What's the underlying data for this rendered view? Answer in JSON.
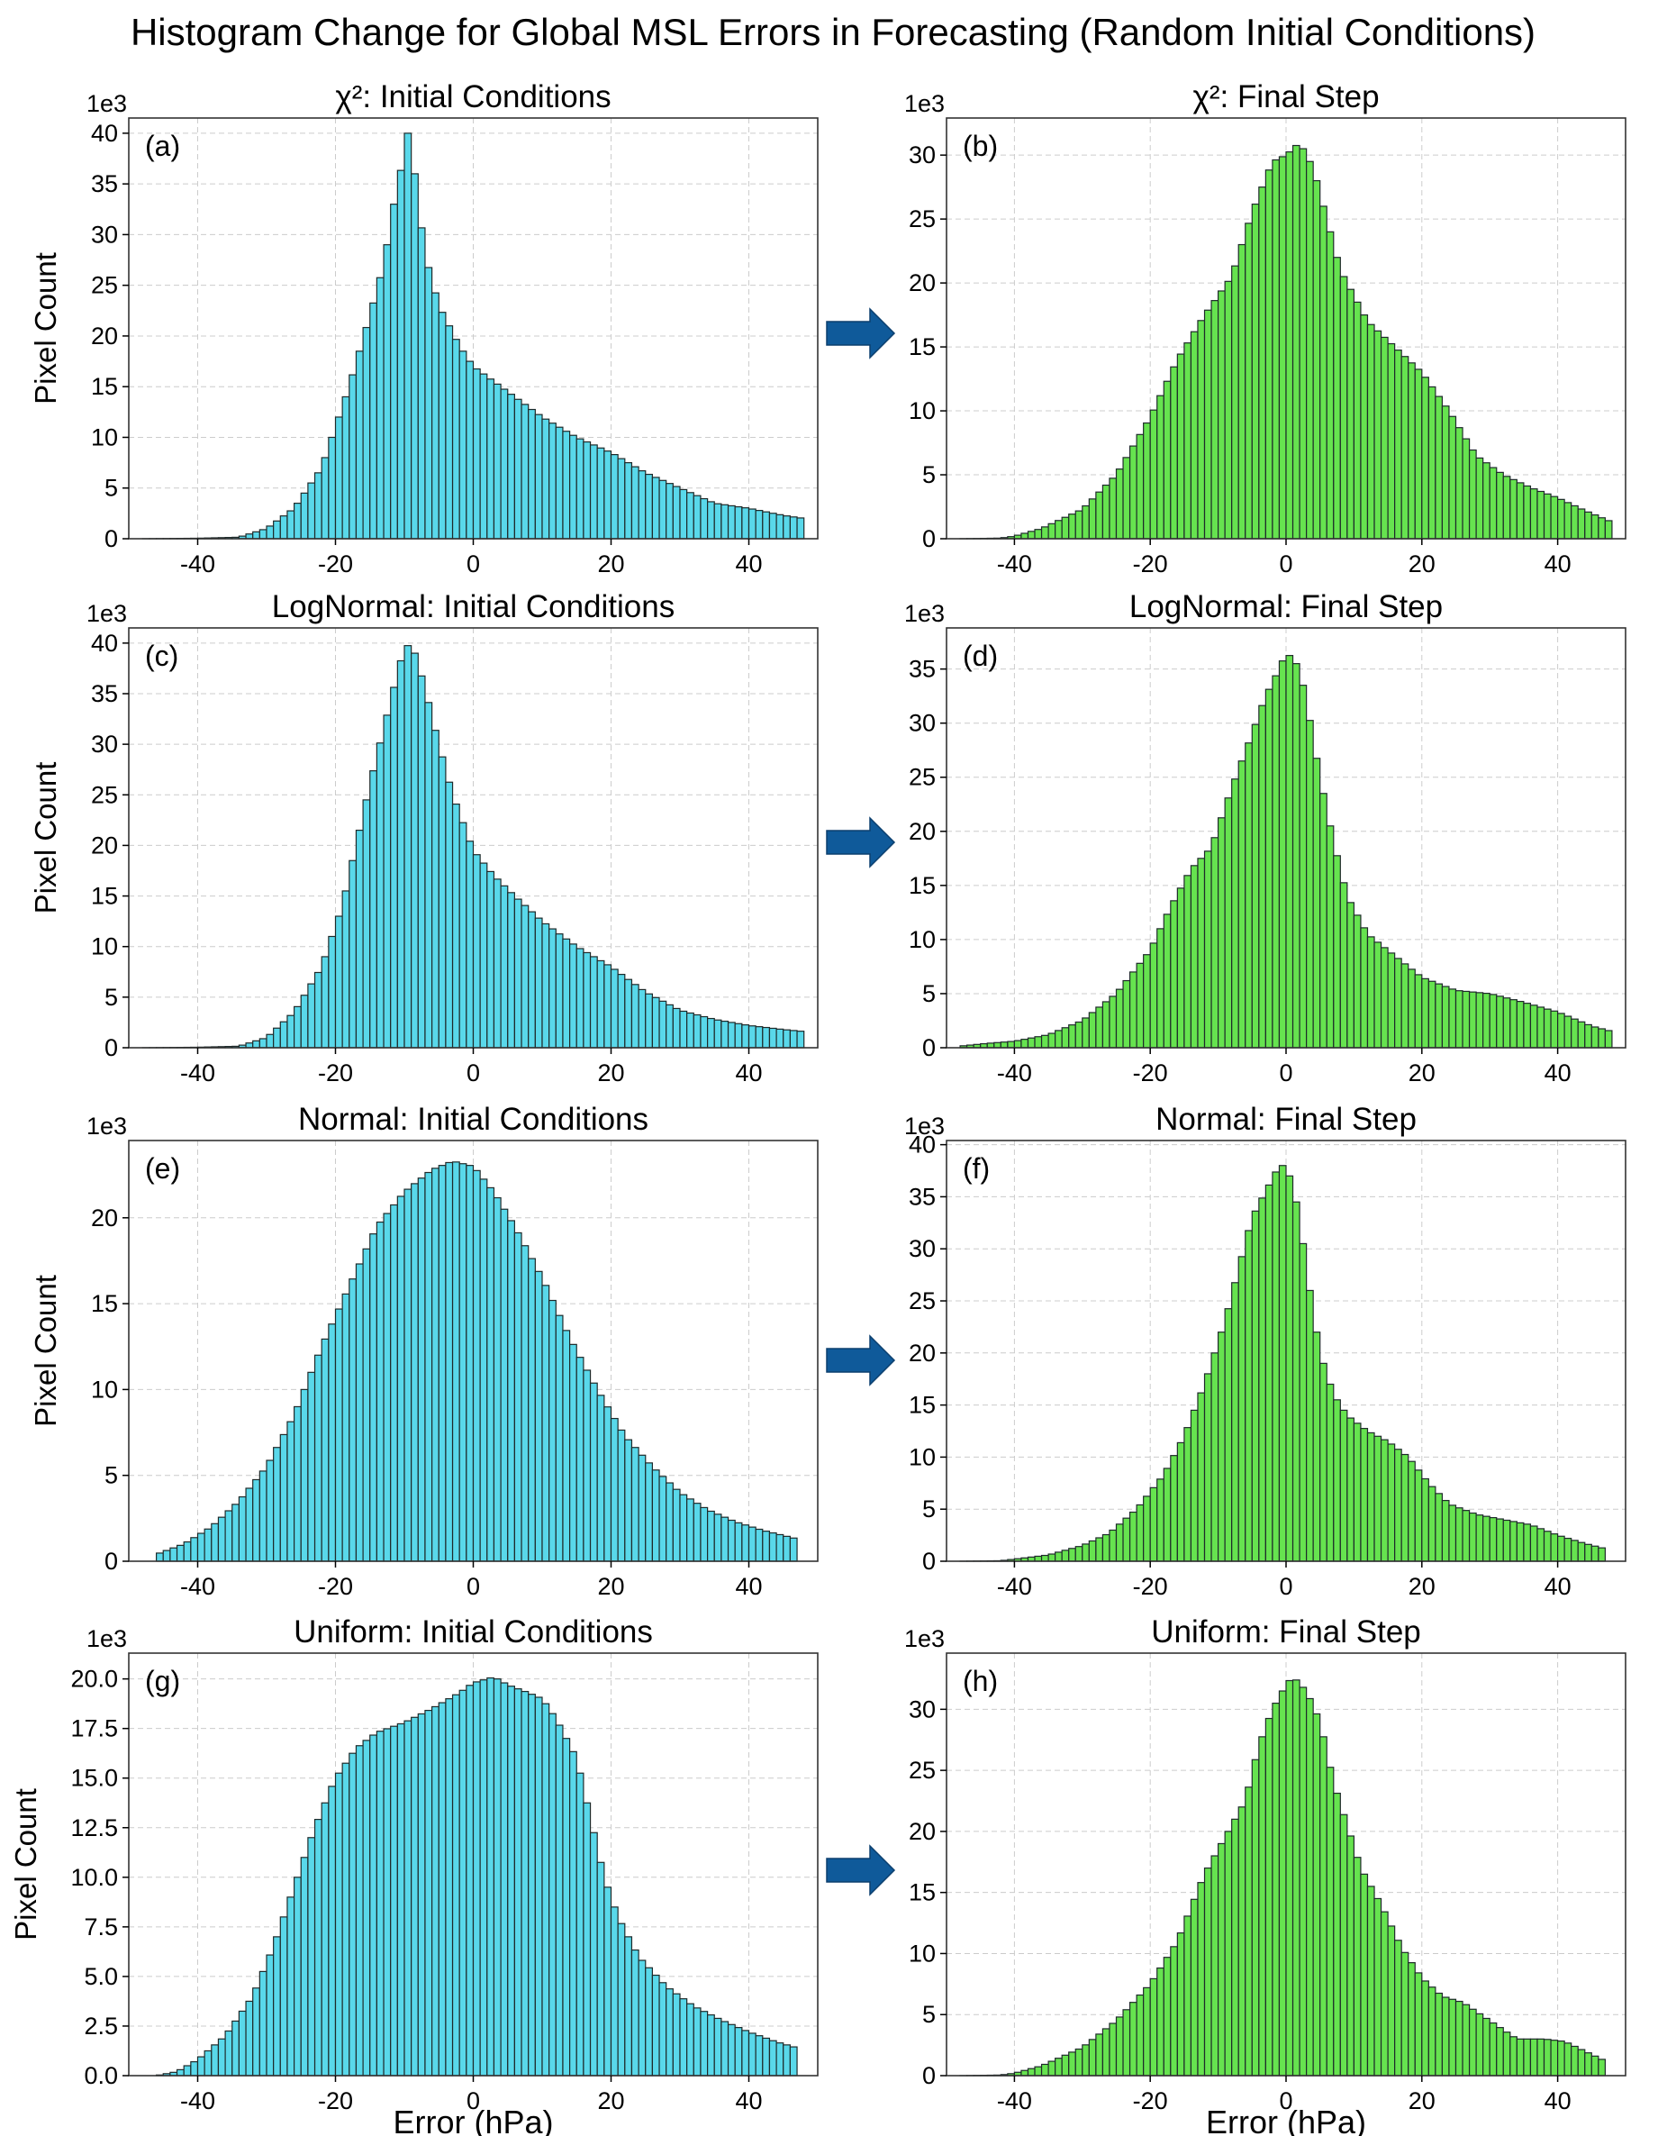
{
  "title": "Histogram Change for Global MSL Errors in Forecasting (Random Initial Conditions)",
  "colors": {
    "initial_fill": "#59d8ea",
    "final_fill": "#66e34f",
    "bar_edge": "#1e2a2a",
    "arrow": "#0f5a9a",
    "grid": "#cccccc"
  },
  "chart_data": [
    {
      "panel": "(a)",
      "type": "bar",
      "title": "χ²: Initial Conditions",
      "xlabel": "",
      "ylabel": "Pixel Count",
      "y_scale_label": "1e3",
      "xlim": [
        -50,
        50
      ],
      "ylim": [
        0,
        41.5
      ],
      "xticks": [
        -40,
        -20,
        0,
        20,
        40
      ],
      "yticks": [
        0,
        5,
        10,
        15,
        20,
        25,
        30,
        35,
        40
      ],
      "x_start": -48,
      "x_end": 48,
      "anchors": [
        [
          -48,
          0
        ],
        [
          -40,
          0.05
        ],
        [
          -34,
          0.15
        ],
        [
          -30,
          1
        ],
        [
          -26,
          3
        ],
        [
          -22,
          7
        ],
        [
          -18,
          15
        ],
        [
          -15,
          22
        ],
        [
          -13,
          27
        ],
        [
          -11.5,
          33
        ],
        [
          -10,
          38
        ],
        [
          -9.5,
          40
        ],
        [
          -8.5,
          36
        ],
        [
          -7,
          28
        ],
        [
          -5,
          23
        ],
        [
          -2,
          19
        ],
        [
          0,
          17
        ],
        [
          5,
          14.5
        ],
        [
          10,
          12
        ],
        [
          15,
          10
        ],
        [
          20,
          8.5
        ],
        [
          25,
          6.5
        ],
        [
          30,
          5
        ],
        [
          35,
          3.5
        ],
        [
          40,
          3
        ],
        [
          45,
          2.3
        ],
        [
          48,
          2
        ]
      ]
    },
    {
      "panel": "(b)",
      "type": "bar",
      "title": "χ²: Final Step",
      "xlabel": "",
      "ylabel": "",
      "y_scale_label": "1e3",
      "xlim": [
        -50,
        50
      ],
      "ylim": [
        0,
        32.9
      ],
      "xticks": [
        -40,
        -20,
        0,
        20,
        40
      ],
      "yticks": [
        0,
        5,
        10,
        15,
        20,
        25,
        30
      ],
      "x_start": -48,
      "x_end": 48,
      "anchors": [
        [
          -48,
          0
        ],
        [
          -42,
          0.05
        ],
        [
          -40,
          0.2
        ],
        [
          -36,
          0.8
        ],
        [
          -30,
          2.3
        ],
        [
          -25,
          5
        ],
        [
          -20,
          9.5
        ],
        [
          -16,
          14
        ],
        [
          -12,
          17.5
        ],
        [
          -8,
          20.5
        ],
        [
          -5,
          25.5
        ],
        [
          -2,
          29.5
        ],
        [
          0,
          30
        ],
        [
          2,
          31
        ],
        [
          4,
          29
        ],
        [
          6,
          25
        ],
        [
          8,
          21
        ],
        [
          10,
          19
        ],
        [
          12,
          17
        ],
        [
          15,
          15.5
        ],
        [
          18,
          14
        ],
        [
          20,
          13
        ],
        [
          24,
          10
        ],
        [
          28,
          6.5
        ],
        [
          32,
          5
        ],
        [
          36,
          4
        ],
        [
          40,
          3.2
        ],
        [
          44,
          2.2
        ],
        [
          48,
          1.3
        ]
      ]
    },
    {
      "panel": "(c)",
      "type": "bar",
      "title": "LogNormal: Initial Conditions",
      "xlabel": "",
      "ylabel": "Pixel Count",
      "y_scale_label": "1e3",
      "xlim": [
        -50,
        50
      ],
      "ylim": [
        0,
        41.5
      ],
      "xticks": [
        -40,
        -20,
        0,
        20,
        40
      ],
      "yticks": [
        0,
        5,
        10,
        15,
        20,
        25,
        30,
        35,
        40
      ],
      "x_start": -48,
      "x_end": 48,
      "anchors": [
        [
          -48,
          0
        ],
        [
          -40,
          0.05
        ],
        [
          -34,
          0.15
        ],
        [
          -30,
          1
        ],
        [
          -26,
          3.5
        ],
        [
          -22,
          8
        ],
        [
          -19,
          14
        ],
        [
          -17,
          20
        ],
        [
          -15,
          26
        ],
        [
          -13,
          31.5
        ],
        [
          -11,
          37
        ],
        [
          -10,
          39.5
        ],
        [
          -9,
          40
        ],
        [
          -8,
          38
        ],
        [
          -7,
          35.5
        ],
        [
          -5,
          30
        ],
        [
          -3,
          25
        ],
        [
          0,
          19.5
        ],
        [
          3,
          17
        ],
        [
          6,
          15
        ],
        [
          10,
          12.5
        ],
        [
          15,
          10
        ],
        [
          20,
          8
        ],
        [
          25,
          5.5
        ],
        [
          30,
          3.7
        ],
        [
          35,
          2.8
        ],
        [
          40,
          2.2
        ],
        [
          45,
          1.8
        ],
        [
          48,
          1.6
        ]
      ]
    },
    {
      "panel": "(d)",
      "type": "bar",
      "title": "LogNormal: Final Step",
      "xlabel": "",
      "ylabel": "",
      "y_scale_label": "1e3",
      "xlim": [
        -50,
        50
      ],
      "ylim": [
        0,
        38.8
      ],
      "xticks": [
        -40,
        -20,
        0,
        20,
        40
      ],
      "yticks": [
        0,
        5,
        10,
        15,
        20,
        25,
        30,
        35
      ],
      "x_start": -48,
      "x_end": 48,
      "anchors": [
        [
          -48,
          0.15
        ],
        [
          -44,
          0.4
        ],
        [
          -40,
          0.6
        ],
        [
          -35,
          1.2
        ],
        [
          -30,
          2.5
        ],
        [
          -25,
          5
        ],
        [
          -20,
          9
        ],
        [
          -17,
          13
        ],
        [
          -14,
          16.5
        ],
        [
          -11,
          18.5
        ],
        [
          -8,
          24
        ],
        [
          -5,
          29
        ],
        [
          -3,
          32.5
        ],
        [
          -1,
          35
        ],
        [
          0,
          36.5
        ],
        [
          1,
          36
        ],
        [
          2,
          35
        ],
        [
          3,
          32
        ],
        [
          5,
          25
        ],
        [
          7,
          19
        ],
        [
          9,
          14
        ],
        [
          12,
          10.5
        ],
        [
          15,
          9
        ],
        [
          20,
          6.5
        ],
        [
          25,
          5.3
        ],
        [
          30,
          5
        ],
        [
          35,
          4.2
        ],
        [
          40,
          3.3
        ],
        [
          45,
          2
        ],
        [
          48,
          1.5
        ]
      ]
    },
    {
      "panel": "(e)",
      "type": "bar",
      "title": "Normal: Initial Conditions",
      "xlabel": "",
      "ylabel": "Pixel Count",
      "y_scale_label": "1e3",
      "xlim": [
        -50,
        50
      ],
      "ylim": [
        0,
        24.5
      ],
      "xticks": [
        -40,
        -20,
        0,
        20,
        40
      ],
      "yticks": [
        0,
        5,
        10,
        15,
        20
      ],
      "x_start": -46,
      "x_end": 47,
      "anchors": [
        [
          -46,
          0.4
        ],
        [
          -42,
          1
        ],
        [
          -38,
          2
        ],
        [
          -34,
          3.5
        ],
        [
          -30,
          5.5
        ],
        [
          -26,
          8.5
        ],
        [
          -22,
          12.5
        ],
        [
          -18,
          16
        ],
        [
          -14,
          19.5
        ],
        [
          -10,
          21.5
        ],
        [
          -6,
          22.8
        ],
        [
          -3,
          23.3
        ],
        [
          0,
          23
        ],
        [
          3,
          21.5
        ],
        [
          6,
          19.5
        ],
        [
          10,
          16.5
        ],
        [
          14,
          13
        ],
        [
          18,
          10
        ],
        [
          22,
          7.3
        ],
        [
          26,
          5.5
        ],
        [
          30,
          4
        ],
        [
          34,
          3
        ],
        [
          38,
          2.3
        ],
        [
          42,
          1.8
        ],
        [
          47,
          1.3
        ]
      ]
    },
    {
      "panel": "(f)",
      "type": "bar",
      "title": "Normal: Final Step",
      "xlabel": "",
      "ylabel": "",
      "y_scale_label": "1e3",
      "xlim": [
        -50,
        50
      ],
      "ylim": [
        0,
        40.4
      ],
      "xticks": [
        -40,
        -20,
        0,
        20,
        40
      ],
      "yticks": [
        0,
        5,
        10,
        15,
        20,
        25,
        30,
        35,
        40
      ],
      "x_start": -48,
      "x_end": 47,
      "anchors": [
        [
          -48,
          0
        ],
        [
          -42,
          0.05
        ],
        [
          -40,
          0.2
        ],
        [
          -35,
          0.6
        ],
        [
          -30,
          1.5
        ],
        [
          -26,
          2.7
        ],
        [
          -22,
          5
        ],
        [
          -18,
          8.3
        ],
        [
          -15,
          12
        ],
        [
          -12,
          17
        ],
        [
          -9,
          23
        ],
        [
          -7,
          28
        ],
        [
          -5,
          33
        ],
        [
          -3,
          35.5
        ],
        [
          -1,
          38
        ],
        [
          0,
          38
        ],
        [
          1,
          36
        ],
        [
          2,
          33
        ],
        [
          3,
          28
        ],
        [
          5,
          20
        ],
        [
          7,
          16
        ],
        [
          9,
          14
        ],
        [
          12,
          12.5
        ],
        [
          15,
          11.5
        ],
        [
          18,
          10
        ],
        [
          21,
          7.5
        ],
        [
          24,
          5.5
        ],
        [
          28,
          4.5
        ],
        [
          32,
          4
        ],
        [
          36,
          3.5
        ],
        [
          40,
          2.5
        ],
        [
          44,
          1.7
        ],
        [
          47,
          1.2
        ]
      ]
    },
    {
      "panel": "(g)",
      "type": "bar",
      "title": "Uniform: Initial Conditions",
      "xlabel": "Error (hPa)",
      "ylabel": "Pixel Count",
      "y_scale_label": "1e3",
      "xlim": [
        -50,
        50
      ],
      "ylim": [
        0,
        21.3
      ],
      "xticks": [
        -40,
        -20,
        0,
        20,
        40
      ],
      "yticks": [
        0,
        2.5,
        5,
        7.5,
        10,
        12.5,
        15,
        17.5,
        20
      ],
      "ytick_format": "fixed1",
      "x_start": -46,
      "x_end": 47,
      "anchors": [
        [
          -46,
          0
        ],
        [
          -43,
          0.2
        ],
        [
          -40,
          0.8
        ],
        [
          -36,
          2
        ],
        [
          -32,
          4
        ],
        [
          -29,
          6.5
        ],
        [
          -26,
          9.5
        ],
        [
          -23,
          12.5
        ],
        [
          -20,
          15
        ],
        [
          -17,
          16.5
        ],
        [
          -14,
          17.3
        ],
        [
          -10,
          17.8
        ],
        [
          -6,
          18.5
        ],
        [
          -2,
          19.3
        ],
        [
          0,
          19.8
        ],
        [
          3,
          20.1
        ],
        [
          5,
          19.7
        ],
        [
          8,
          19.3
        ],
        [
          10,
          19
        ],
        [
          12,
          18
        ],
        [
          15,
          16
        ],
        [
          17,
          13
        ],
        [
          19,
          10
        ],
        [
          21,
          8
        ],
        [
          24,
          6
        ],
        [
          28,
          4.5
        ],
        [
          32,
          3.5
        ],
        [
          36,
          2.8
        ],
        [
          40,
          2.2
        ],
        [
          44,
          1.7
        ],
        [
          47,
          1.4
        ]
      ]
    },
    {
      "panel": "(h)",
      "type": "bar",
      "title": "Uniform: Final Step",
      "xlabel": "Error (hPa)",
      "ylabel": "",
      "y_scale_label": "1e3",
      "xlim": [
        -50,
        50
      ],
      "ylim": [
        0,
        34.6
      ],
      "xticks": [
        -40,
        -20,
        0,
        20,
        40
      ],
      "yticks": [
        0,
        5,
        10,
        15,
        20,
        25,
        30
      ],
      "x_start": -48,
      "x_end": 47,
      "anchors": [
        [
          -48,
          0
        ],
        [
          -42,
          0.05
        ],
        [
          -40,
          0.2
        ],
        [
          -36,
          0.8
        ],
        [
          -30,
          2.3
        ],
        [
          -25,
          4.5
        ],
        [
          -20,
          7.5
        ],
        [
          -16,
          11
        ],
        [
          -12,
          16.5
        ],
        [
          -9,
          19.5
        ],
        [
          -6,
          22.5
        ],
        [
          -4,
          27
        ],
        [
          -2,
          30
        ],
        [
          0,
          32
        ],
        [
          1,
          32.7
        ],
        [
          3,
          31.5
        ],
        [
          5,
          29
        ],
        [
          7,
          24
        ],
        [
          9,
          20.5
        ],
        [
          11,
          17
        ],
        [
          14,
          14
        ],
        [
          17,
          10.5
        ],
        [
          20,
          8
        ],
        [
          23,
          6.5
        ],
        [
          26,
          6
        ],
        [
          30,
          4.5
        ],
        [
          34,
          3
        ],
        [
          38,
          3
        ],
        [
          41,
          2.8
        ],
        [
          44,
          2
        ],
        [
          47,
          1.2
        ]
      ]
    }
  ]
}
